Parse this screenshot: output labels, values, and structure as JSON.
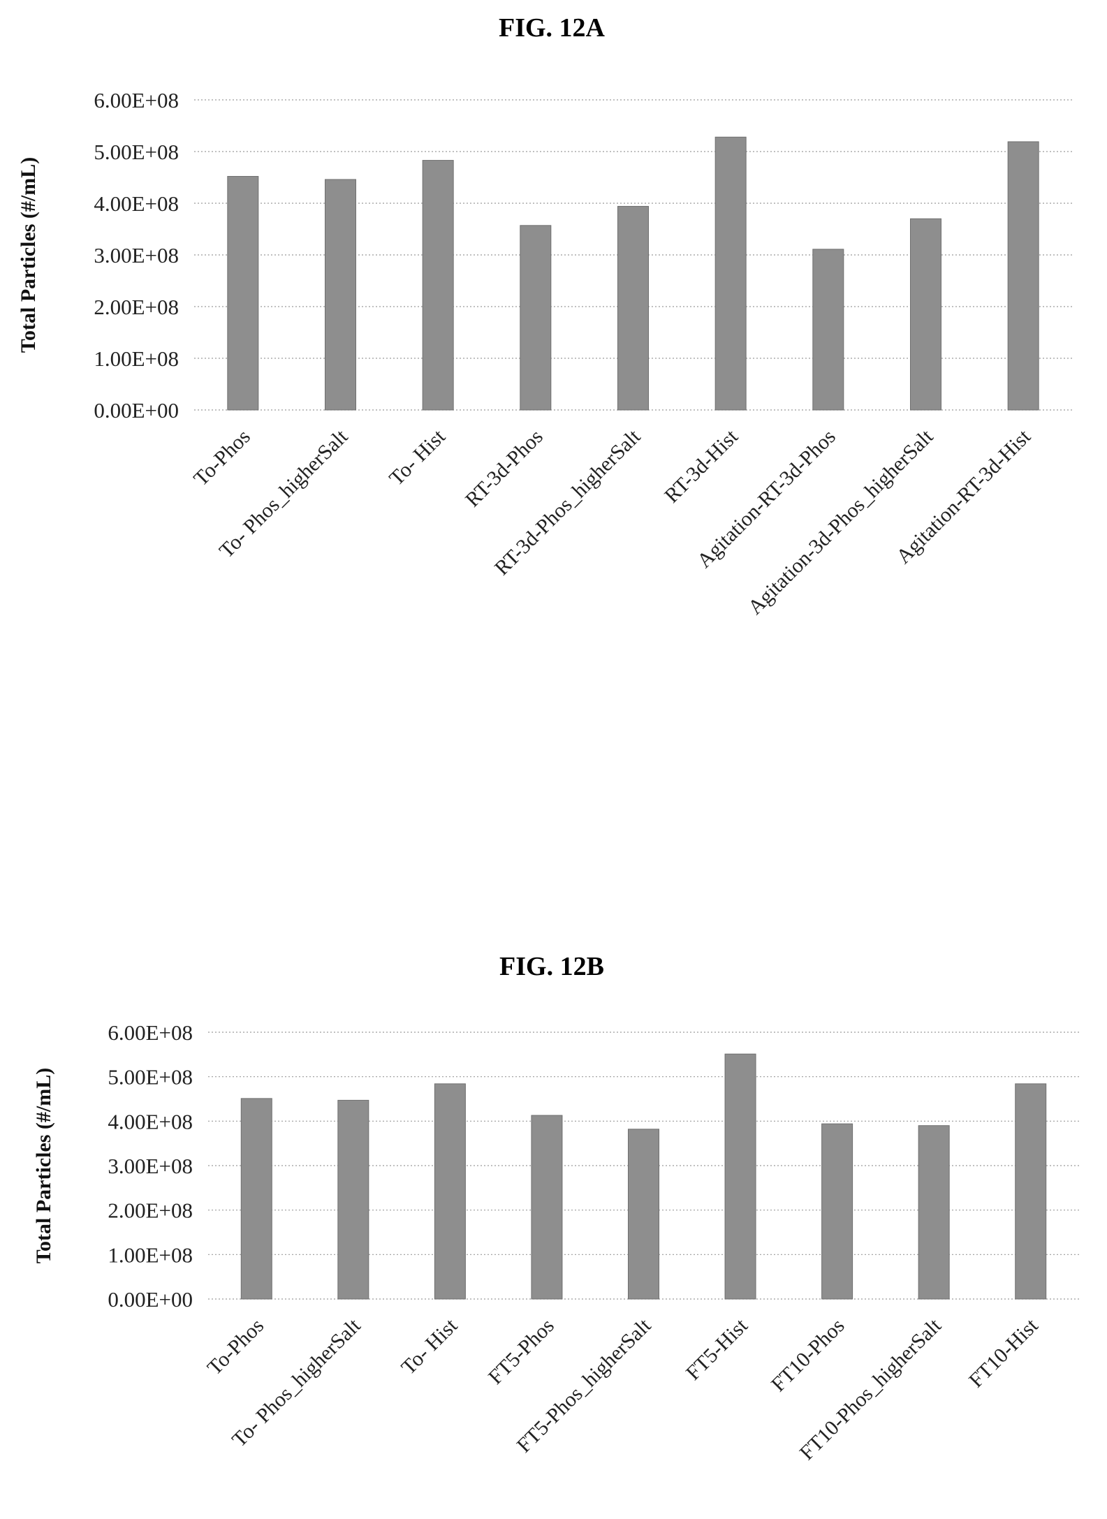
{
  "chart_data": [
    {
      "type": "bar",
      "title": "FIG. 12A",
      "xlabel": "",
      "ylabel": "Total Particles (#/mL)",
      "ylim": [
        0,
        600000000
      ],
      "yticks": [
        "0.00E+00",
        "1.00E+08",
        "2.00E+08",
        "3.00E+08",
        "4.00E+08",
        "5.00E+08",
        "6.00E+08"
      ],
      "grid": true,
      "categories": [
        "To-Phos",
        "To- Phos_higherSalt",
        "To- Hist",
        "RT-3d-Phos",
        "RT-3d-Phos_higherSalt",
        "RT-3d-Hist",
        "Agitation-RT-3d-Phos",
        "Agitation-3d-Phos_higherSalt",
        "Agitation-RT-3d-Hist"
      ],
      "values": [
        452000000,
        446000000,
        483000000,
        357000000,
        394000000,
        528000000,
        311000000,
        370000000,
        519000000
      ]
    },
    {
      "type": "bar",
      "title": "FIG. 12B",
      "xlabel": "",
      "ylabel": "Total Particles (#/mL)",
      "ylim": [
        0,
        600000000
      ],
      "yticks": [
        "0.00E+00",
        "1.00E+08",
        "2.00E+08",
        "3.00E+08",
        "4.00E+08",
        "5.00E+08",
        "6.00E+08"
      ],
      "grid": true,
      "categories": [
        "To-Phos",
        "To- Phos_higherSalt",
        "To- Hist",
        "FT5-Phos",
        "FT5-Phos_higherSalt",
        "FT5-Hist",
        "FT10-Phos",
        "FT10-Phos_higherSalt",
        "FT10-Hist"
      ],
      "values": [
        451000000,
        447000000,
        484000000,
        413000000,
        382000000,
        551000000,
        394000000,
        390000000,
        484000000
      ]
    }
  ]
}
